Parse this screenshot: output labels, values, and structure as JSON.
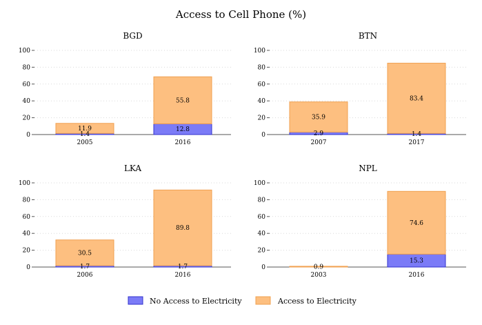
{
  "title": "Access to Cell Phone (%)",
  "colors": {
    "no_access_fill": "#7b7bf7",
    "no_access_stroke": "#3333cc",
    "access_fill": "#fdbf80",
    "access_stroke": "#f0a050",
    "grid": "#d9d9d9",
    "axis": "#555555"
  },
  "legend": {
    "placement": "bottom-center",
    "items": [
      {
        "label": "No Access to Electricity",
        "color_key": "no_access"
      },
      {
        "label": "Access to Electricity",
        "color_key": "access"
      }
    ]
  },
  "chart_data": [
    {
      "type": "bar",
      "stacked": true,
      "title": "BGD",
      "categories": [
        "2005",
        "2016"
      ],
      "ylim": [
        0,
        100
      ],
      "yticks": [
        0,
        20,
        40,
        60,
        80,
        100
      ],
      "grid": true,
      "series": [
        {
          "name": "No Access to Electricity",
          "values": [
            1.4,
            12.8
          ]
        },
        {
          "name": "Access to Electricity",
          "values": [
            11.9,
            55.8
          ]
        }
      ]
    },
    {
      "type": "bar",
      "stacked": true,
      "title": "BTN",
      "categories": [
        "2007",
        "2017"
      ],
      "ylim": [
        0,
        100
      ],
      "yticks": [
        0,
        20,
        40,
        60,
        80,
        100
      ],
      "grid": true,
      "series": [
        {
          "name": "No Access to Electricity",
          "values": [
            2.9,
            1.4
          ]
        },
        {
          "name": "Access to Electricity",
          "values": [
            35.9,
            83.4
          ]
        }
      ]
    },
    {
      "type": "bar",
      "stacked": true,
      "title": "LKA",
      "categories": [
        "2006",
        "2016"
      ],
      "ylim": [
        0,
        100
      ],
      "yticks": [
        0,
        20,
        40,
        60,
        80,
        100
      ],
      "grid": true,
      "series": [
        {
          "name": "No Access to Electricity",
          "values": [
            1.7,
            1.7
          ]
        },
        {
          "name": "Access to Electricity",
          "values": [
            30.5,
            89.8
          ]
        }
      ]
    },
    {
      "type": "bar",
      "stacked": true,
      "title": "NPL",
      "categories": [
        "2003",
        "2016"
      ],
      "ylim": [
        0,
        100
      ],
      "yticks": [
        0,
        20,
        40,
        60,
        80,
        100
      ],
      "grid": true,
      "series": [
        {
          "name": "No Access to Electricity",
          "values": [
            0.0,
            15.3
          ]
        },
        {
          "name": "Access to Electricity",
          "values": [
            0.9,
            74.6
          ]
        }
      ]
    }
  ]
}
